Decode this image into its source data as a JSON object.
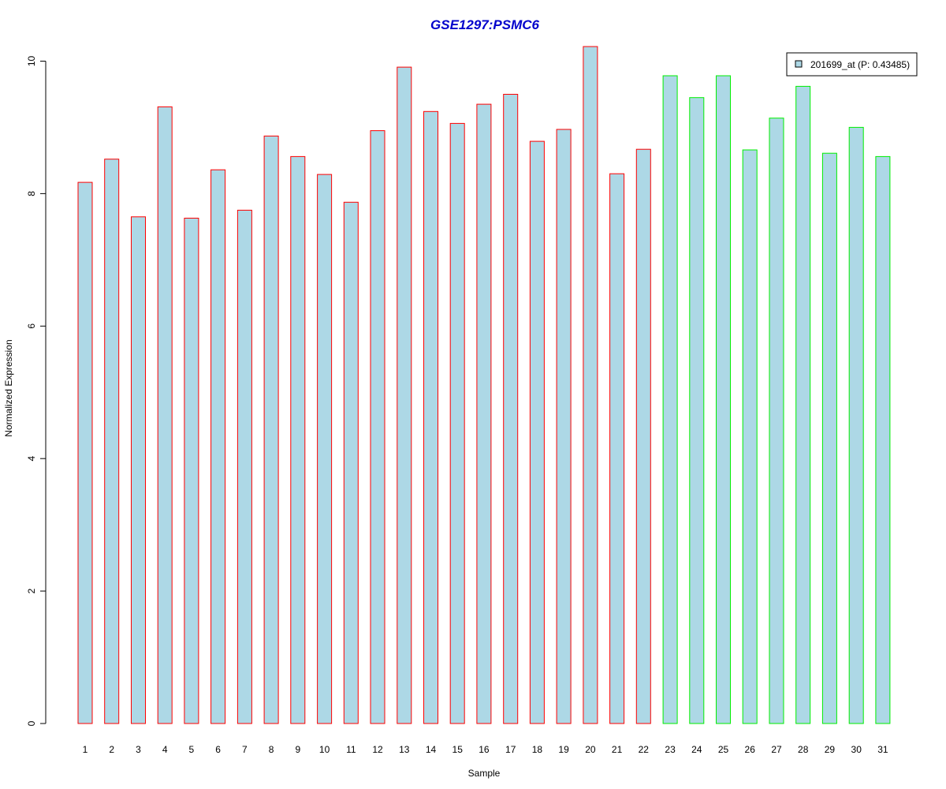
{
  "chart_data": {
    "type": "bar",
    "title": "GSE1297:PSMC6",
    "xlabel": "Sample",
    "ylabel": "Normalized Expression",
    "categories": [
      "1",
      "2",
      "3",
      "4",
      "5",
      "6",
      "7",
      "8",
      "9",
      "10",
      "11",
      "12",
      "13",
      "14",
      "15",
      "16",
      "17",
      "18",
      "19",
      "20",
      "21",
      "22",
      "23",
      "24",
      "25",
      "26",
      "27",
      "28",
      "29",
      "30",
      "31"
    ],
    "values": [
      8.17,
      8.52,
      7.65,
      9.31,
      7.63,
      8.36,
      7.75,
      8.87,
      8.56,
      8.29,
      7.87,
      8.95,
      9.91,
      9.24,
      9.06,
      9.35,
      9.5,
      8.79,
      8.97,
      10.22,
      8.3,
      8.67,
      9.78,
      9.45,
      9.78,
      8.66,
      9.14,
      9.62,
      8.61,
      9.0,
      8.56
    ],
    "groups": [
      1,
      1,
      1,
      1,
      1,
      1,
      1,
      1,
      1,
      1,
      1,
      1,
      1,
      1,
      1,
      1,
      1,
      1,
      1,
      1,
      1,
      1,
      2,
      2,
      2,
      2,
      2,
      2,
      2,
      2,
      2
    ],
    "group_colors": {
      "1": "#ff0000",
      "2": "#00ee00"
    },
    "bar_fill": "#add8e6",
    "title_color": "#0000cc",
    "yticks": [
      0,
      2,
      4,
      6,
      8,
      10
    ],
    "ylim": [
      0,
      10.22
    ],
    "legend": {
      "label": "201699_at (P: 0.43485)",
      "position": "top-right"
    },
    "grid": false
  }
}
